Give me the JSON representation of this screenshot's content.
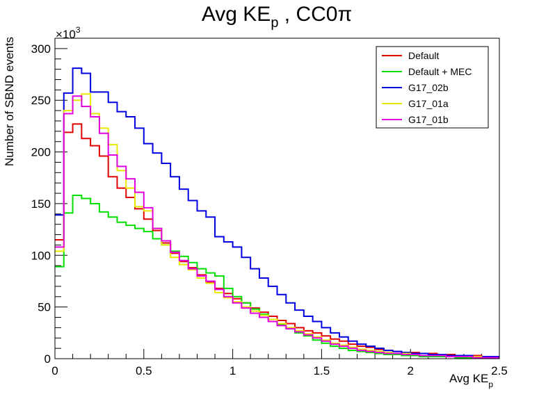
{
  "chart_data": {
    "type": "histogram-step",
    "title": "Avg KE",
    "title_sub": "p",
    "title_suffix": " , CC0π",
    "xlabel": "Avg KE",
    "xlabel_sub": "p",
    "ylabel": "Number of SBND events",
    "y_multiplier": "×10",
    "y_multiplier_exp": "3",
    "xlim": [
      0,
      2.5
    ],
    "ylim": [
      0,
      310
    ],
    "x_ticks": [
      0,
      0.5,
      1,
      1.5,
      2,
      2.5
    ],
    "x_tick_labels": [
      "0",
      "0.5",
      "1",
      "1.5",
      "2",
      "2.5"
    ],
    "y_ticks": [
      0,
      50,
      100,
      150,
      200,
      250,
      300
    ],
    "y_tick_labels": [
      "0",
      "50",
      "100",
      "150",
      "200",
      "250",
      "300"
    ],
    "bin_width": 0.05,
    "bin_edges_start": 0,
    "legend_position": "top-right",
    "grid": false,
    "series": [
      {
        "name": "Default",
        "color": "#e00000",
        "values": [
          115,
          219,
          227,
          213,
          206,
          196,
          176,
          165,
          156,
          145,
          135,
          124,
          112,
          102,
          94,
          88,
          81,
          74,
          68,
          63,
          58,
          54,
          49,
          45,
          41,
          37,
          34,
          30,
          27,
          25,
          22,
          19,
          17,
          14,
          12,
          11,
          9,
          8,
          7,
          6,
          6,
          5,
          5,
          4,
          4,
          3,
          3,
          3,
          2,
          2
        ]
      },
      {
        "name": "Default + MEC",
        "color": "#00e000",
        "values": [
          89,
          141,
          158,
          155,
          150,
          142,
          137,
          132,
          129,
          126,
          123,
          116,
          110,
          104,
          99,
          93,
          87,
          83,
          80,
          68,
          60,
          54,
          48,
          43,
          38,
          33,
          29,
          25,
          22,
          18,
          15,
          12,
          10,
          8,
          7,
          6,
          5,
          4,
          4,
          3,
          3,
          2,
          2,
          2,
          2,
          1,
          1,
          1,
          1,
          1
        ]
      },
      {
        "name": "G17_02b",
        "color": "#0000e0",
        "values": [
          139,
          257,
          281,
          276,
          258,
          258,
          248,
          239,
          234,
          223,
          208,
          199,
          189,
          176,
          164,
          153,
          143,
          137,
          118,
          113,
          108,
          98,
          87,
          78,
          70,
          62,
          54,
          47,
          41,
          36,
          30,
          25,
          21,
          17,
          14,
          12,
          10,
          8,
          7,
          6,
          5,
          5,
          4,
          4,
          3,
          3,
          3,
          2,
          2,
          2
        ]
      },
      {
        "name": "G17_01a",
        "color": "#e8e800",
        "values": [
          104,
          240,
          250,
          256,
          237,
          223,
          207,
          182,
          165,
          147,
          143,
          126,
          110,
          98,
          91,
          86,
          78,
          73,
          64,
          59,
          55,
          50,
          46,
          42,
          38,
          34,
          30,
          27,
          24,
          21,
          18,
          15,
          13,
          11,
          9,
          8,
          7,
          6,
          5,
          5,
          4,
          3,
          3,
          3,
          2,
          2,
          2,
          2,
          1,
          1
        ]
      },
      {
        "name": "G17_01b",
        "color": "#e000e0",
        "values": [
          108,
          237,
          254,
          244,
          234,
          218,
          197,
          186,
          174,
          161,
          146,
          126,
          114,
          103,
          95,
          87,
          80,
          75,
          67,
          60,
          54,
          49,
          44,
          40,
          36,
          32,
          29,
          26,
          23,
          20,
          17,
          14,
          12,
          10,
          8,
          7,
          6,
          5,
          5,
          4,
          4,
          3,
          3,
          3,
          2,
          2,
          2,
          1,
          1,
          1
        ]
      }
    ]
  }
}
